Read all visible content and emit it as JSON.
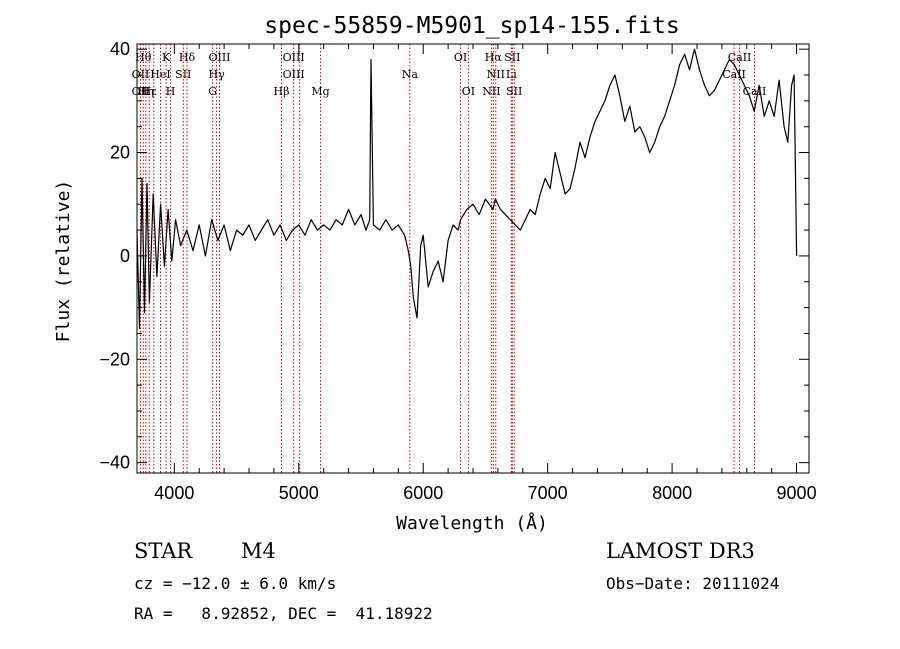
{
  "chart_data": {
    "type": "line",
    "title": "spec-55859-M5901_sp14-155.fits",
    "xlabel": "Wavelength (Å)",
    "ylabel": "Flux (relative)",
    "xlim": [
      3700,
      9100
    ],
    "ylim": [
      -42,
      41
    ],
    "x_ticks": [
      4000,
      5000,
      6000,
      7000,
      8000,
      9000
    ],
    "y_ticks": [
      -40,
      -20,
      0,
      20,
      40
    ],
    "series": [
      {
        "name": "spectrum",
        "x": [
          3700,
          3720,
          3740,
          3760,
          3780,
          3800,
          3830,
          3860,
          3890,
          3920,
          3950,
          3980,
          4010,
          4050,
          4100,
          4150,
          4200,
          4250,
          4300,
          4350,
          4400,
          4450,
          4500,
          4550,
          4600,
          4650,
          4700,
          4750,
          4800,
          4850,
          4900,
          4950,
          5000,
          5050,
          5100,
          5150,
          5200,
          5250,
          5300,
          5350,
          5400,
          5450,
          5500,
          5540,
          5570,
          5580,
          5600,
          5650,
          5700,
          5750,
          5800,
          5850,
          5880,
          5900,
          5920,
          5950,
          5980,
          6000,
          6040,
          6080,
          6120,
          6160,
          6200,
          6240,
          6280,
          6300,
          6350,
          6400,
          6450,
          6500,
          6530,
          6560,
          6580,
          6620,
          6660,
          6700,
          6740,
          6780,
          6820,
          6860,
          6900,
          6940,
          6980,
          7020,
          7060,
          7080,
          7100,
          7140,
          7180,
          7220,
          7260,
          7300,
          7340,
          7380,
          7420,
          7460,
          7500,
          7540,
          7580,
          7620,
          7660,
          7700,
          7740,
          7780,
          7820,
          7860,
          7900,
          7940,
          7980,
          8020,
          8060,
          8100,
          8140,
          8180,
          8220,
          8260,
          8300,
          8340,
          8380,
          8420,
          8460,
          8500,
          8540,
          8580,
          8620,
          8660,
          8700,
          8740,
          8780,
          8820,
          8860,
          8900,
          8930,
          8960,
          8980,
          9000
        ],
        "y": [
          5,
          -14,
          15,
          -11,
          14,
          -9,
          12,
          -4,
          10,
          -2,
          9,
          -1,
          7,
          2,
          5,
          1,
          6,
          0,
          7,
          3,
          6,
          1,
          5,
          4,
          6,
          3,
          5,
          7,
          4,
          6,
          3,
          5,
          6,
          4,
          7,
          5,
          6,
          5,
          7,
          6,
          9,
          6,
          8,
          5,
          7,
          38,
          6,
          5,
          7,
          5,
          6,
          4,
          1,
          -2,
          -8,
          -12,
          2,
          4,
          -6,
          -3,
          -1,
          -5,
          3,
          6,
          5,
          7,
          9,
          10,
          8,
          11,
          10,
          9,
          11,
          9,
          8,
          7,
          6,
          5,
          7,
          9,
          8,
          12,
          15,
          13,
          20,
          18,
          16,
          12,
          13,
          17,
          22,
          19,
          23,
          26,
          28,
          30,
          33,
          35,
          31,
          26,
          29,
          24,
          25,
          23,
          20,
          22,
          25,
          27,
          30,
          33,
          37,
          39,
          36,
          40,
          36,
          33,
          31,
          32,
          34,
          36,
          38,
          37,
          35,
          33,
          31,
          28,
          33,
          27,
          30,
          27,
          34,
          25,
          22,
          33,
          35,
          0
        ],
        "color": "#000000"
      }
    ],
    "lines": [
      {
        "x": 3728,
        "label": "OII"
      },
      {
        "x": 3750,
        "label": "Hθ"
      },
      {
        "x": 3771,
        "label": "Hη"
      },
      {
        "x": 3798,
        "label": "Hε"
      },
      {
        "x": 3835,
        "label": "Hε"
      },
      {
        "x": 3889,
        "label": "HeI"
      },
      {
        "x": 3934,
        "label": "K"
      },
      {
        "x": 3970,
        "label": "H"
      },
      {
        "x": 4072,
        "label": "SII"
      },
      {
        "x": 4102,
        "label": "Hδ"
      },
      {
        "x": 4308,
        "label": "G"
      },
      {
        "x": 4340,
        "label": "Hγ"
      },
      {
        "x": 4363,
        "label": "OIII"
      },
      {
        "x": 4861,
        "label": "Hβ"
      },
      {
        "x": 4959,
        "label": "OIII"
      },
      {
        "x": 5007,
        "label": "OIII"
      },
      {
        "x": 5175,
        "label": "Mg"
      },
      {
        "x": 5892,
        "label": "Na"
      },
      {
        "x": 6300,
        "label": "OI"
      },
      {
        "x": 6363,
        "label": "OI"
      },
      {
        "x": 6548,
        "label": "NII"
      },
      {
        "x": 6563,
        "label": "Hα"
      },
      {
        "x": 6583,
        "label": "NII"
      },
      {
        "x": 6708,
        "label": "Li"
      },
      {
        "x": 6716,
        "label": "SII"
      },
      {
        "x": 6731,
        "label": "SII"
      },
      {
        "x": 8498,
        "label": "CaII"
      },
      {
        "x": 8542,
        "label": "CaII"
      },
      {
        "x": 8662,
        "label": "CaII"
      }
    ],
    "line_label_rows": [
      [
        {
          "text": "Hθ",
          "x": 3750
        },
        {
          "text": "K",
          "x": 3934
        },
        {
          "text": "Hδ",
          "x": 4102
        },
        {
          "text": "OIII",
          "x": 4363
        },
        {
          "text": "OIII",
          "x": 4959
        },
        {
          "text": "OI",
          "x": 6300
        },
        {
          "text": "Hα",
          "x": 6563
        },
        {
          "text": "SII",
          "x": 6716
        },
        {
          "text": "CaII",
          "x": 8542
        }
      ],
      [
        {
          "text": "OII",
          "x": 3728
        },
        {
          "text": "HeI",
          "x": 3889
        },
        {
          "text": "SII",
          "x": 4072
        },
        {
          "text": "Hγ",
          "x": 4340
        },
        {
          "text": "OIII",
          "x": 4959
        },
        {
          "text": "Na",
          "x": 5892
        },
        {
          "text": "NII",
          "x": 6583
        },
        {
          "text": "Li",
          "x": 6708
        },
        {
          "text": "CaII",
          "x": 8498
        }
      ],
      [
        {
          "text": "OII",
          "x": 3728
        },
        {
          "text": "Hε",
          "x": 3798
        },
        {
          "text": "Hη",
          "x": 3771
        },
        {
          "text": "H",
          "x": 3970
        },
        {
          "text": "G",
          "x": 4308
        },
        {
          "text": "Hβ",
          "x": 4861
        },
        {
          "text": "Mg",
          "x": 5175
        },
        {
          "text": "OI",
          "x": 6363
        },
        {
          "text": "NII",
          "x": 6548
        },
        {
          "text": "SII",
          "x": 6731
        },
        {
          "text": "CaII",
          "x": 8662
        }
      ]
    ],
    "grid": false,
    "line_color": "#cc0000"
  },
  "info": {
    "object_class": "STAR",
    "subclass": "M4",
    "survey": "LAMOST DR3",
    "cz": "cz = −12.0 ± 6.0 km/s",
    "obs_date": "Obs−Date: 20111024",
    "coords": "RA =   8.92852, DEC =  41.18922"
  }
}
